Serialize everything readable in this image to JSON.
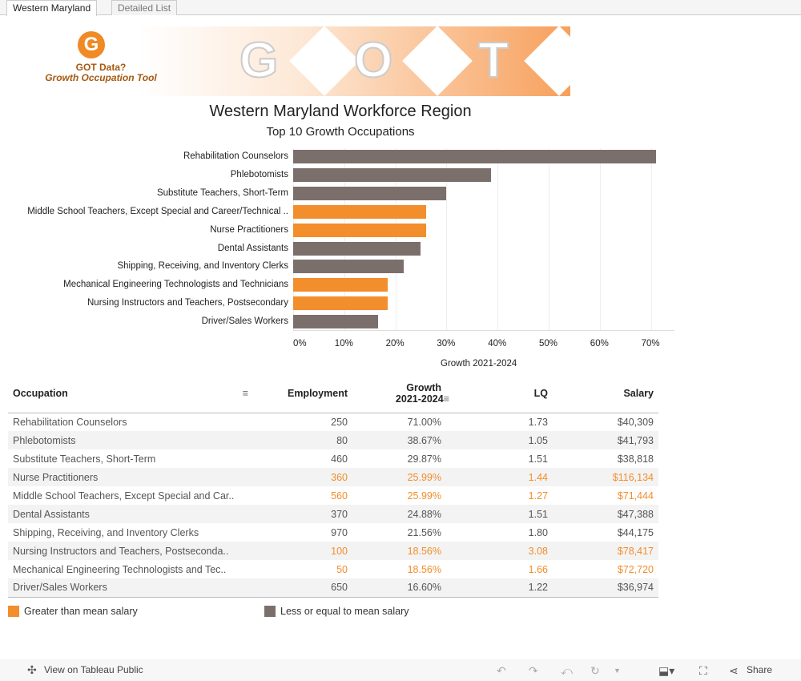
{
  "tabs": [
    {
      "label": "Western Maryland",
      "active": true
    },
    {
      "label": "Detailed List",
      "active": false
    }
  ],
  "banner": {
    "logo_letter": "G",
    "logo_line1": "GOT Data?",
    "logo_line2": "Growth Occupation Tool",
    "letters": [
      "G",
      "O",
      "T"
    ]
  },
  "title": "Western Maryland Workforce Region",
  "subtitle": "Top 10 Growth Occupations",
  "colors": {
    "above_mean": "#f28e2b",
    "below_mean": "#7b6f6c"
  },
  "chart_data": {
    "type": "bar",
    "orientation": "horizontal",
    "xlabel": "Growth 2021-2024",
    "xlim": [
      0,
      74
    ],
    "ticks": [
      "0%",
      "10%",
      "20%",
      "30%",
      "40%",
      "50%",
      "60%",
      "70%"
    ],
    "categories": [
      "Rehabilitation Counselors",
      "Phlebotomists",
      "Substitute Teachers, Short-Term",
      "Middle School Teachers, Except Special and Career/Technical ..",
      "Nurse Practitioners",
      "Dental Assistants",
      "Shipping, Receiving, and Inventory Clerks",
      "Mechanical Engineering Technologists and Technicians",
      "Nursing Instructors and Teachers, Postsecondary",
      "Driver/Sales Workers"
    ],
    "values": [
      71.0,
      38.67,
      29.87,
      25.99,
      25.99,
      24.88,
      21.56,
      18.56,
      18.56,
      16.6
    ],
    "above_mean": [
      false,
      false,
      false,
      true,
      true,
      false,
      false,
      true,
      true,
      false
    ]
  },
  "table": {
    "headers": {
      "occupation": "Occupation",
      "employment": "Employment",
      "growth1": "Growth",
      "growth2": "2021-2024",
      "lq": "LQ",
      "salary": "Salary"
    },
    "rows": [
      {
        "occupation": "Rehabilitation Counselors",
        "employment": "250",
        "growth": "71.00%",
        "lq": "1.73",
        "salary": "$40,309",
        "above": false
      },
      {
        "occupation": "Phlebotomists",
        "employment": "80",
        "growth": "38.67%",
        "lq": "1.05",
        "salary": "$41,793",
        "above": false
      },
      {
        "occupation": "Substitute Teachers, Short-Term",
        "employment": "460",
        "growth": "29.87%",
        "lq": "1.51",
        "salary": "$38,818",
        "above": false
      },
      {
        "occupation": "Nurse Practitioners",
        "employment": "360",
        "growth": "25.99%",
        "lq": "1.44",
        "salary": "$116,134",
        "above": true
      },
      {
        "occupation": "Middle School Teachers, Except Special and Car..",
        "employment": "560",
        "growth": "25.99%",
        "lq": "1.27",
        "salary": "$71,444",
        "above": true
      },
      {
        "occupation": "Dental Assistants",
        "employment": "370",
        "growth": "24.88%",
        "lq": "1.51",
        "salary": "$47,388",
        "above": false
      },
      {
        "occupation": "Shipping, Receiving, and Inventory Clerks",
        "employment": "970",
        "growth": "21.56%",
        "lq": "1.80",
        "salary": "$44,175",
        "above": false
      },
      {
        "occupation": "Nursing Instructors and Teachers, Postseconda..",
        "employment": "100",
        "growth": "18.56%",
        "lq": "3.08",
        "salary": "$78,417",
        "above": true
      },
      {
        "occupation": "Mechanical Engineering Technologists and Tec..",
        "employment": "50",
        "growth": "18.56%",
        "lq": "1.66",
        "salary": "$72,720",
        "above": true
      },
      {
        "occupation": "Driver/Sales Workers",
        "employment": "650",
        "growth": "16.60%",
        "lq": "1.22",
        "salary": "$36,974",
        "above": false
      }
    ]
  },
  "legend": {
    "above": "Greater than mean salary",
    "below": "Less or equal to mean salary"
  },
  "footer": {
    "view_label": "View on Tableau Public",
    "share_label": "Share"
  }
}
